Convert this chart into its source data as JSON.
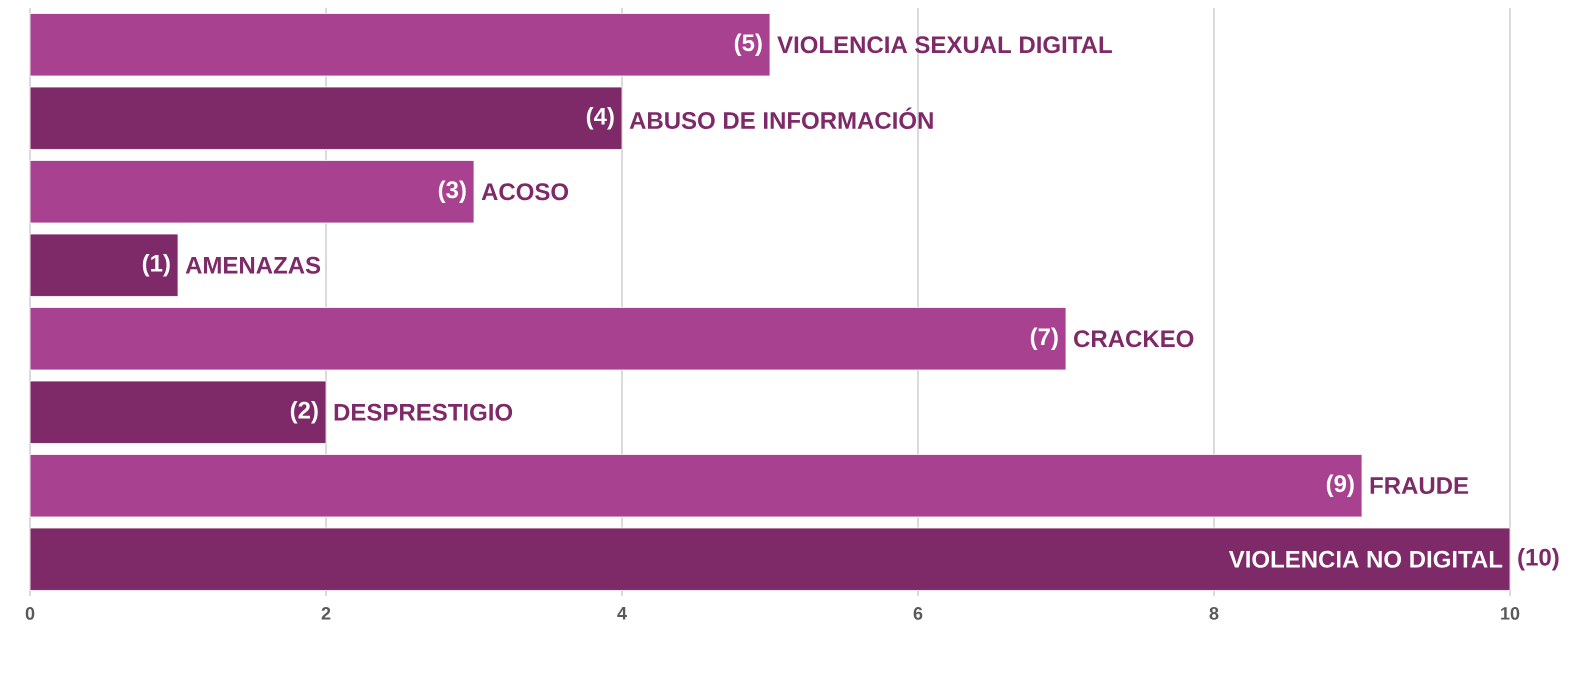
{
  "chart_data": {
    "type": "bar",
    "orientation": "horizontal",
    "categories": [
      "VIOLENCIA SEXUAL DIGITAL",
      "ABUSO DE INFORMACIÓN",
      "ACOSO",
      "AMENAZAS",
      "CRACKEO",
      "DESPRESTIGIO",
      "FRAUDE",
      "VIOLENCIA NO DIGITAL"
    ],
    "values": [
      5,
      4,
      3,
      1,
      7,
      2,
      9,
      10
    ],
    "value_labels": [
      "(5)",
      "(4)",
      "(3)",
      "(1)",
      "(7)",
      "(2)",
      "(9)",
      "(10)"
    ],
    "colors": [
      "#a8418f",
      "#7f2a68",
      "#a8418f",
      "#7f2a68",
      "#a8418f",
      "#7f2a68",
      "#a8418f",
      "#7f2a68"
    ],
    "xlim": [
      0,
      10
    ],
    "xticks": [
      0,
      2,
      4,
      6,
      8,
      10
    ],
    "grid": "x"
  }
}
